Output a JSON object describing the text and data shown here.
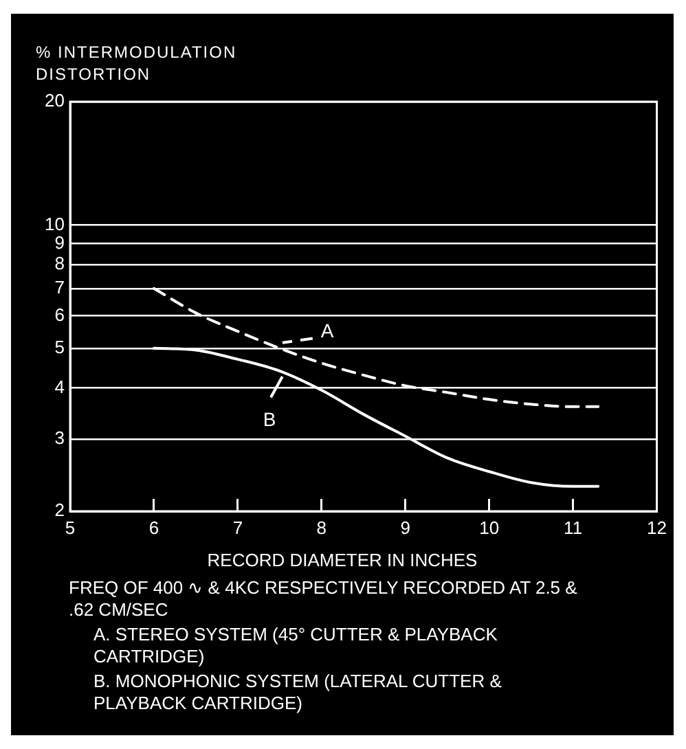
{
  "chart_data": {
    "type": "line",
    "ylabel": "% INTERMODULATION DISTORTION",
    "xlabel": "RECORD DIAMETER IN INCHES",
    "annotations": [
      "FREQ OF 400 ∿ & 4KC RESPECTIVELY RECORDED AT 2.5 & .62 CM/SEC",
      "A. STEREO SYSTEM (45° CUTTER & PLAYBACK CARTRIDGE)",
      "B. MONOPHONIC SYSTEM (LATERAL CUTTER & PLAYBACK CARTRIDGE)"
    ],
    "series": [
      {
        "name": "A",
        "color": "#ffffff",
        "line_style": "dashed",
        "x": [
          6,
          6.5,
          7,
          7.5,
          8,
          8.5,
          9,
          9.5,
          10,
          10.5,
          11,
          11.3
        ],
        "values": [
          7,
          6.1,
          5.5,
          5.0,
          4.6,
          4.3,
          4.05,
          3.9,
          3.75,
          3.65,
          3.6,
          3.6
        ]
      },
      {
        "name": "B",
        "color": "#ffffff",
        "line_style": "solid",
        "x": [
          6,
          6.5,
          7,
          7.5,
          8,
          8.5,
          9,
          9.5,
          10,
          10.5,
          11,
          11.3
        ],
        "values": [
          5,
          4.95,
          4.7,
          4.4,
          3.95,
          3.45,
          3.05,
          2.7,
          2.5,
          2.35,
          2.3,
          2.3
        ]
      }
    ],
    "log": "y",
    "xlim": [
      5,
      12
    ],
    "xticks": [
      5,
      6,
      7,
      8,
      9,
      10,
      11,
      12
    ],
    "ylim": [
      2,
      20
    ],
    "yticks": [
      2,
      3,
      4,
      5,
      6,
      7,
      8,
      9,
      10,
      20
    ],
    "grid": "y",
    "marker": "none"
  }
}
